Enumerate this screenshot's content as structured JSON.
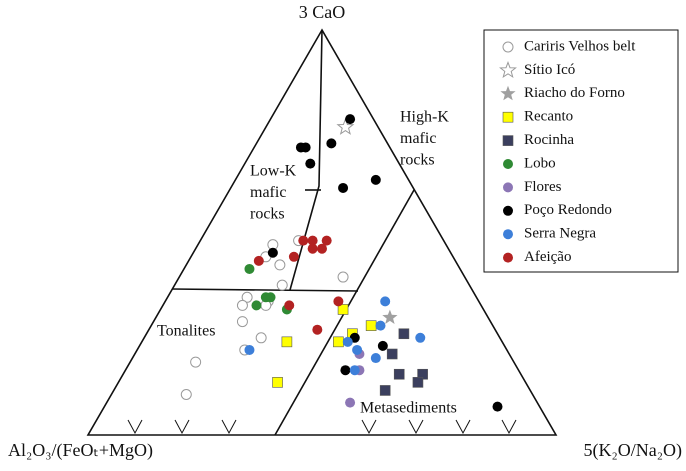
{
  "chart_data": {
    "type": "ternary",
    "top_label": "3 CaO",
    "left_label": "Al₂O₃/(FeOₜ+MgO)",
    "right_label": "5(K₂O/Na₂O)",
    "annotations": [
      {
        "lines": [
          "High-K",
          "mafic",
          "rocks"
        ]
      },
      {
        "lines": [
          "Low-K",
          "mafic",
          "rocks"
        ]
      },
      {
        "lines": [
          "Tonalites"
        ]
      },
      {
        "lines": [
          "Metasediments"
        ]
      }
    ],
    "series": [
      {
        "name": "Cariris Velhos belt",
        "marker": "open-circle",
        "color": "#9a9a9a",
        "top": [
          47,
          48,
          42,
          44,
          34,
          32,
          33,
          32,
          37,
          28,
          24,
          21,
          18,
          10,
          39
        ],
        "right": [
          16,
          21,
          20,
          16,
          17,
          17,
          22,
          22,
          23,
          19,
          25,
          23,
          14,
          16,
          35
        ]
      },
      {
        "name": "Sítio Icó",
        "marker": "open-star",
        "color": "#9a9a9a",
        "top": [
          76
        ],
        "right": [
          17
        ]
      },
      {
        "name": "Riacho do Forno",
        "marker": "star",
        "color": "#a0a0a0",
        "top": [
          29
        ],
        "right": [
          50
        ]
      },
      {
        "name": "Recanto",
        "marker": "square",
        "color": "#ffff00",
        "top": [
          31,
          27,
          25,
          23,
          23,
          13
        ],
        "right": [
          39,
          47,
          44,
          42,
          31,
          34
        ]
      },
      {
        "name": "Rocinha",
        "marker": "square",
        "color": "#3b3f5e",
        "top": [
          25,
          20,
          15,
          15,
          11,
          13
        ],
        "right": [
          55,
          55,
          59,
          64,
          58,
          64
        ]
      },
      {
        "name": "Lobo",
        "marker": "circle",
        "color": "#2f8a34",
        "top": [
          41,
          34,
          34,
          32,
          31
        ],
        "right": [
          14,
          21,
          22,
          20,
          27
        ]
      },
      {
        "name": "Flores",
        "marker": "circle",
        "color": "#8c76b5",
        "top": [
          20,
          16,
          8
        ],
        "right": [
          48,
          50,
          52
        ]
      },
      {
        "name": "Poço Redondo",
        "marker": "circle",
        "color": "#000000",
        "top": [
          78,
          71,
          71,
          72,
          67,
          61,
          63,
          45,
          24,
          16,
          22,
          7
        ],
        "right": [
          17,
          10,
          11,
          16,
          14,
          24,
          30,
          17,
          45,
          47,
          52,
          84
        ]
      },
      {
        "name": "Serra Negra",
        "marker": "circle",
        "color": "#3d7fd9",
        "top": [
          33,
          27,
          21,
          23,
          21,
          19,
          16,
          24
        ],
        "right": [
          47,
          49,
          24,
          44,
          47,
          52,
          49,
          59
        ]
      },
      {
        "name": "Afeição",
        "marker": "circle",
        "color": "#b32222",
        "top": [
          48,
          48,
          48,
          46,
          46,
          44,
          43,
          32,
          33,
          26
        ],
        "right": [
          22,
          24,
          27,
          25,
          27,
          22,
          15,
          27,
          37,
          36
        ]
      }
    ]
  }
}
